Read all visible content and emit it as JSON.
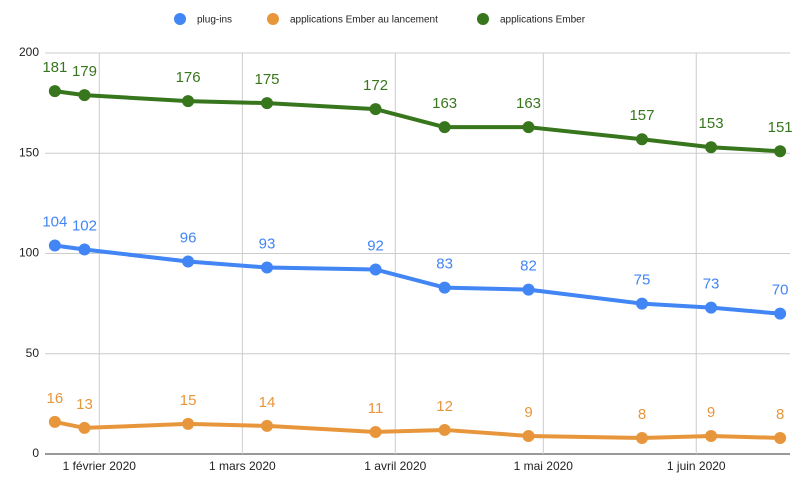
{
  "chart_data": {
    "type": "line",
    "x": [
      "2020-01-23",
      "2020-01-29",
      "2020-02-19",
      "2020-03-06",
      "2020-03-28",
      "2020-04-11",
      "2020-04-28",
      "2020-05-21",
      "2020-06-04",
      "2020-06-18"
    ],
    "series": [
      {
        "name": "plug-ins",
        "color": "#4285f4",
        "values": [
          104,
          102,
          96,
          93,
          92,
          83,
          82,
          75,
          73,
          70
        ]
      },
      {
        "name": "applications Ember au lancement",
        "color": "#e8963c",
        "values": [
          16,
          13,
          15,
          14,
          11,
          12,
          9,
          8,
          9,
          8
        ]
      },
      {
        "name": "applications Ember",
        "color": "#38761d",
        "values": [
          181,
          179,
          176,
          175,
          172,
          163,
          163,
          157,
          153,
          151
        ]
      }
    ],
    "xlim": [
      "2020-01-21",
      "2020-06-20"
    ],
    "xticks": [
      {
        "value": "2020-02-01",
        "label": "1 février 2020"
      },
      {
        "value": "2020-03-01",
        "label": "1 mars 2020"
      },
      {
        "value": "2020-04-01",
        "label": "1 avril 2020"
      },
      {
        "value": "2020-05-01",
        "label": "1 mai 2020"
      },
      {
        "value": "2020-06-01",
        "label": "1 juin 2020"
      }
    ],
    "ylim": [
      0,
      200
    ],
    "yticks": [
      0,
      50,
      100,
      150,
      200
    ],
    "grid": true,
    "legend": "top"
  }
}
